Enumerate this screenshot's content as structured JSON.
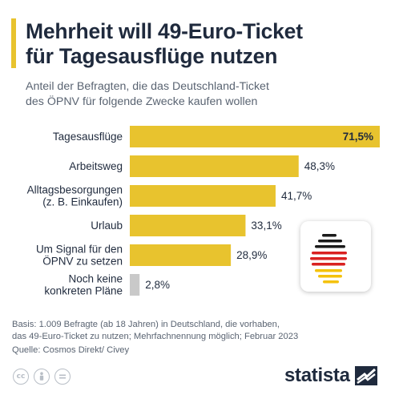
{
  "header": {
    "title": "Mehrheit will 49-Euro-Ticket\nfür Tagesausflüge nutzen",
    "subtitle": "Anteil der Befragten, die das Deutschland-Ticket\ndes ÖPNV für folgende Zwecke kaufen wollen"
  },
  "chart_data": {
    "type": "bar",
    "orientation": "horizontal",
    "categories": [
      "Tagesausflüge",
      "Arbeitsweg",
      "Alltagsbesorgungen\n(z. B. Einkaufen)",
      "Urlaub",
      "Um Signal für den\nÖPNV zu setzen",
      "Noch keine\nkonkreten Pläne"
    ],
    "values": [
      71.5,
      48.3,
      41.7,
      33.1,
      28.9,
      2.8
    ],
    "value_labels": [
      "71,5%",
      "48,3%",
      "41,7%",
      "33,1%",
      "28,9%",
      "2,8%"
    ],
    "colors": [
      "#e8c32e",
      "#e8c32e",
      "#e8c32e",
      "#e8c32e",
      "#e8c32e",
      "#c9c9c9"
    ],
    "xlim": [
      0,
      71.5
    ],
    "grid": false,
    "legend": "none"
  },
  "footer": {
    "note": "Basis: 1.009 Befragte (ab 18 Jahren) in Deutschland, die vorhaben,\ndas 49-Euro-Ticket zu nutzen; Mehrfachnennung möglich; Februar 2023",
    "source": "Quelle: Cosmos Direkt/ Civey",
    "brand": "statista"
  },
  "icons": [
    "cc-icon",
    "by-icon",
    "nd-icon",
    "germany-flag-map-icon",
    "statista-logo-icon"
  ],
  "colors": {
    "accent": "#e8c32e",
    "bar": "#e8c32e",
    "bar_muted": "#c9c9c9",
    "text_dark": "#1f2a3d",
    "text_muted": "#5a6472"
  }
}
